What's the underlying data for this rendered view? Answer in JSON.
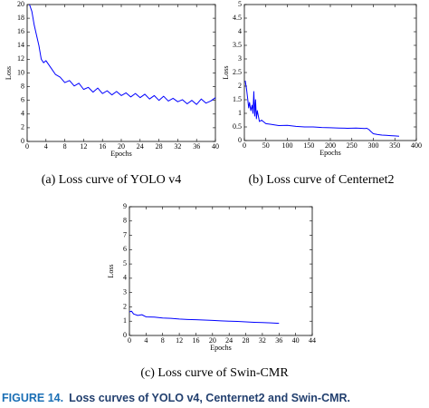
{
  "figure": {
    "label": "FIGURE 14.",
    "caption": "Loss curves of YOLO v4, Centernet2 and Swin-CMR."
  },
  "chart_data": [
    {
      "type": "line",
      "caption": "(a) Loss curve of YOLO v4",
      "xlabel": "Epochs",
      "ylabel": "Loss",
      "xlim": [
        0,
        40
      ],
      "xticks": [
        0,
        4,
        8,
        12,
        16,
        20,
        24,
        28,
        32,
        36,
        40
      ],
      "ylim": [
        0,
        20
      ],
      "yticks": [
        0,
        2,
        4,
        6,
        8,
        10,
        12,
        14,
        16,
        18,
        20
      ],
      "x": [
        0.5,
        1,
        1.5,
        2,
        2.5,
        3,
        3.5,
        4,
        5,
        6,
        7,
        8,
        9,
        10,
        11,
        12,
        13,
        14,
        15,
        16,
        17,
        18,
        19,
        20,
        21,
        22,
        23,
        24,
        25,
        26,
        27,
        28,
        29,
        30,
        31,
        32,
        33,
        34,
        35,
        36,
        37,
        38,
        39,
        40
      ],
      "series": [
        {
          "name": "Loss",
          "color": "#0000ff",
          "values": [
            20,
            19,
            17,
            15.5,
            14,
            12,
            11.5,
            11.8,
            10.8,
            9.8,
            9.4,
            8.6,
            8.9,
            8.1,
            8.5,
            7.6,
            7.9,
            7.2,
            7.8,
            7.0,
            7.4,
            6.8,
            7.3,
            6.7,
            7.1,
            6.5,
            7.0,
            6.4,
            6.9,
            6.2,
            6.7,
            6.0,
            6.6,
            5.9,
            6.3,
            5.8,
            6.1,
            5.5,
            6.0,
            5.4,
            6.2,
            5.6,
            5.9,
            6.4
          ]
        }
      ]
    },
    {
      "type": "line",
      "caption": "(b) Loss curve of Centernet2",
      "xlabel": "Epochs",
      "ylabel": "Loss",
      "xlim": [
        0,
        400
      ],
      "xticks": [
        0,
        50,
        100,
        150,
        200,
        250,
        300,
        350,
        400
      ],
      "ylim": [
        0,
        5
      ],
      "yticks": [
        0,
        0.5,
        1,
        1.5,
        2,
        2.5,
        3,
        3.5,
        4,
        4.5,
        5
      ],
      "x": [
        2,
        5,
        8,
        10,
        12,
        15,
        18,
        20,
        22,
        24,
        26,
        28,
        30,
        35,
        40,
        50,
        60,
        80,
        100,
        120,
        140,
        160,
        180,
        200,
        220,
        240,
        260,
        280,
        285,
        290,
        295,
        300,
        310,
        320,
        330,
        340,
        350,
        360
      ],
      "series": [
        {
          "name": "Loss",
          "color": "#0000ff",
          "values": [
            2.2,
            1.9,
            1.5,
            1.2,
            1.4,
            1.1,
            1.3,
            1.0,
            1.8,
            0.9,
            1.5,
            0.8,
            1.1,
            0.7,
            0.75,
            0.62,
            0.6,
            0.55,
            0.56,
            0.52,
            0.5,
            0.5,
            0.48,
            0.47,
            0.46,
            0.45,
            0.46,
            0.44,
            0.45,
            0.4,
            0.32,
            0.25,
            0.22,
            0.2,
            0.19,
            0.18,
            0.17,
            0.16
          ]
        }
      ]
    },
    {
      "type": "line",
      "caption": "(c) Loss curve of Swin-CMR",
      "xlabel": "Epochs",
      "ylabel": "Loss",
      "xlim": [
        0,
        44
      ],
      "xticks": [
        0,
        4,
        8,
        12,
        16,
        20,
        24,
        28,
        32,
        36,
        40,
        44
      ],
      "ylim": [
        0,
        9
      ],
      "yticks": [
        0,
        1,
        2,
        3,
        4,
        5,
        6,
        7,
        8,
        9
      ],
      "x": [
        0,
        0.5,
        1,
        2,
        3,
        4,
        6,
        8,
        10,
        12,
        14,
        16,
        18,
        20,
        22,
        24,
        26,
        28,
        30,
        32,
        34,
        36
      ],
      "series": [
        {
          "name": "Loss",
          "color": "#0000ff",
          "values": [
            1.65,
            1.7,
            1.5,
            1.4,
            1.45,
            1.3,
            1.28,
            1.22,
            1.2,
            1.15,
            1.12,
            1.1,
            1.08,
            1.05,
            1.02,
            1.0,
            0.98,
            0.95,
            0.92,
            0.9,
            0.88,
            0.85
          ]
        }
      ]
    }
  ]
}
